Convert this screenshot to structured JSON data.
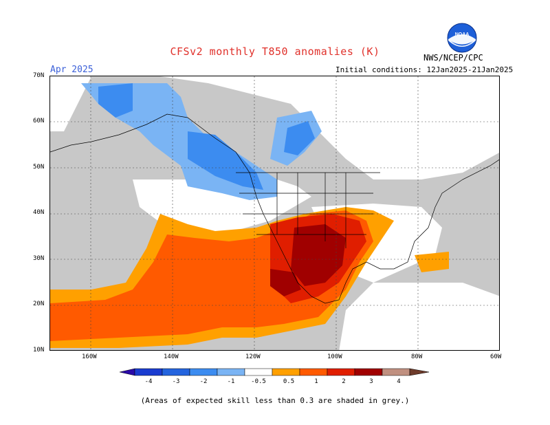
{
  "header": {
    "title": "CFSv2 monthly T850 anomalies (K)",
    "month": "Apr 2025",
    "initial_conditions": "Initial conditions: 12Jan2025-21Jan2025",
    "agency": "NWS/NCEP/CPC",
    "logo_text": "NOAA"
  },
  "axes": {
    "lat_labels": [
      "70N",
      "60N",
      "50N",
      "40N",
      "30N",
      "20N",
      "10N"
    ],
    "lon_labels": [
      "160W",
      "140W",
      "120W",
      "100W",
      "80W",
      "60W"
    ]
  },
  "legend": {
    "labels": [
      "-4",
      "-3",
      "-2",
      "-1",
      "-0.5",
      "0.5",
      "1",
      "2",
      "3",
      "4"
    ],
    "colors": {
      "lt_minus4": "#2a0aa8",
      "m4_m3": "#1a3cd0",
      "m3_m2": "#2464de",
      "m2_m1": "#3c8cf0",
      "m1_m05": "#7ab4f4",
      "neutral": "#ffffff",
      "p05_p1": "#ffa000",
      "p1_p2": "#ff5a00",
      "p2_p3": "#e01e00",
      "p3_p4": "#a00000",
      "gt_p4_bar": "#c09080",
      "gt_p4": "#6e3b2a",
      "grey_low_skill": "#c8c8c8"
    }
  },
  "footnote": "(Areas of expected skill less than 0.3 are shaded in grey.)"
}
